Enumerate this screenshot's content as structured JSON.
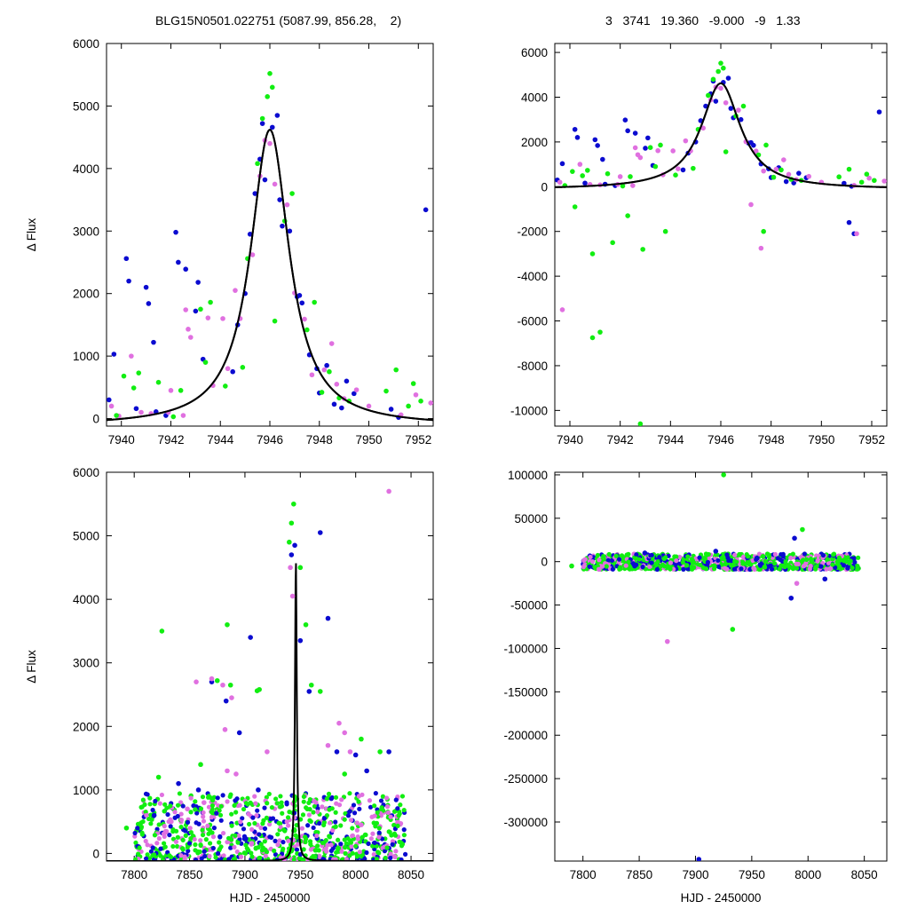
{
  "header": {
    "left": "BLG15N0501.022751 (5087.99, 856.28,    2)",
    "right": "3   3741   19.360   -9.000   -9   1.33"
  },
  "colors": {
    "magenta": "#e070e0",
    "blue": "#0b0bd0",
    "green": "#11ee11",
    "model": "#000000"
  },
  "chart_data": [
    {
      "type": "scatter",
      "panel": "top-left",
      "ylabel": "Δ Flux",
      "xlabel": "",
      "xlim": [
        7939.4,
        7952.6
      ],
      "ylim": [
        -120,
        6000
      ],
      "xticks": [
        7940,
        7942,
        7944,
        7946,
        7948,
        7950,
        7952
      ],
      "yticks": [
        0,
        1000,
        2000,
        3000,
        4000,
        5000,
        6000
      ],
      "model": {
        "type": "line",
        "t0": 7946.0,
        "peak": 4620,
        "width": 0.95,
        "baseline": -120
      },
      "series": [
        {
          "color": "blue",
          "x": [
            7939.5,
            7939.7,
            7940.2,
            7940.3,
            7940.6,
            7941.0,
            7941.1,
            7941.3,
            7941.4,
            7941.8,
            7942.2,
            7942.3,
            7942.6,
            7943.0,
            7943.1,
            7943.3,
            7944.5,
            7944.7,
            7945.0,
            7945.2,
            7945.4,
            7945.6,
            7945.7,
            7945.8,
            7946.1,
            7946.3,
            7946.4,
            7946.5,
            7946.8,
            7947.1,
            7947.2,
            7947.3,
            7947.6,
            7947.9,
            7948.0,
            7948.3,
            7948.6,
            7948.9,
            7949.1,
            7949.4,
            7950.9,
            7951.2,
            7952.3
          ],
          "y": [
            300,
            1030,
            2560,
            2200,
            160,
            2100,
            1840,
            1220,
            110,
            50,
            2980,
            2500,
            2390,
            1720,
            2180,
            950,
            750,
            1500,
            2000,
            2950,
            3600,
            4150,
            4720,
            3820,
            4660,
            4850,
            3500,
            3080,
            3000,
            1950,
            1970,
            1850,
            1020,
            800,
            410,
            850,
            230,
            170,
            600,
            400,
            150,
            20,
            3340
          ]
        },
        {
          "color": "magenta",
          "x": [
            7939.6,
            7939.9,
            7940.4,
            7940.8,
            7941.2,
            7941.9,
            7942.0,
            7942.5,
            7942.6,
            7942.7,
            7942.8,
            7943.5,
            7943.7,
            7944.1,
            7944.3,
            7944.6,
            7944.8,
            7945.3,
            7945.6,
            7945.8,
            7946.0,
            7946.2,
            7946.7,
            7947.0,
            7947.4,
            7947.7,
            7948.2,
            7948.5,
            7948.7,
            7949.0,
            7949.5,
            7950.0,
            7951.3,
            7951.9,
            7952.5
          ],
          "y": [
            200,
            40,
            1000,
            100,
            80,
            100,
            450,
            50,
            1740,
            1430,
            1300,
            1610,
            530,
            1600,
            800,
            2050,
            1600,
            2620,
            3880,
            4450,
            4400,
            3750,
            3420,
            2010,
            1590,
            700,
            780,
            1200,
            550,
            320,
            460,
            200,
            60,
            380,
            250
          ]
        },
        {
          "color": "green",
          "x": [
            7939.8,
            7940.1,
            7940.5,
            7940.7,
            7941.5,
            7942.1,
            7942.4,
            7943.2,
            7943.4,
            7943.6,
            7944.2,
            7944.9,
            7945.1,
            7945.5,
            7945.7,
            7945.9,
            7946.0,
            7946.1,
            7946.2,
            7946.6,
            7946.9,
            7947.5,
            7947.8,
            7948.1,
            7948.4,
            7948.8,
            7949.2,
            7950.7,
            7951.1,
            7951.6,
            7951.8,
            7952.1
          ],
          "y": [
            50,
            680,
            490,
            730,
            580,
            30,
            450,
            1750,
            900,
            1860,
            520,
            820,
            2560,
            4080,
            4800,
            5150,
            5520,
            5300,
            1560,
            3160,
            3600,
            1420,
            1860,
            420,
            750,
            330,
            280,
            440,
            780,
            200,
            560,
            280
          ]
        }
      ]
    },
    {
      "type": "scatter",
      "panel": "top-right",
      "ylabel": "",
      "xlabel": "",
      "xlim": [
        7939.4,
        7952.6
      ],
      "ylim": [
        -10700,
        6400
      ],
      "xticks": [
        7940,
        7942,
        7944,
        7946,
        7948,
        7950,
        7952
      ],
      "yticks": [
        -10000,
        -8000,
        -6000,
        -4000,
        -2000,
        0,
        2000,
        4000,
        6000
      ],
      "model": {
        "type": "line",
        "t0": 7946.0,
        "peak": 4620,
        "width": 0.95,
        "baseline": -120
      },
      "series": [
        {
          "color": "blue",
          "x": [
            7939.5,
            7939.7,
            7940.2,
            7940.3,
            7940.6,
            7941.0,
            7941.1,
            7941.3,
            7941.4,
            7941.8,
            7942.2,
            7942.3,
            7942.6,
            7943.0,
            7943.1,
            7943.3,
            7944.5,
            7944.7,
            7945.0,
            7945.2,
            7945.4,
            7945.6,
            7945.7,
            7945.8,
            7946.1,
            7946.3,
            7946.4,
            7946.5,
            7946.8,
            7947.1,
            7947.2,
            7947.3,
            7947.6,
            7947.9,
            7948.0,
            7948.3,
            7948.6,
            7948.9,
            7949.1,
            7949.4,
            7950.9,
            7951.2,
            7952.3,
            7951.1,
            7951.3
          ],
          "y": [
            300,
            1030,
            2560,
            2200,
            160,
            2100,
            1840,
            1220,
            110,
            50,
            2980,
            2500,
            2390,
            1720,
            2180,
            950,
            750,
            1500,
            2000,
            2950,
            3600,
            4150,
            4720,
            3820,
            4660,
            4850,
            3500,
            3080,
            3000,
            1950,
            1970,
            1850,
            1020,
            800,
            410,
            850,
            230,
            170,
            600,
            400,
            150,
            20,
            3340,
            -1600,
            -2100
          ]
        },
        {
          "color": "magenta",
          "x": [
            7939.6,
            7939.7,
            7940.4,
            7940.8,
            7941.2,
            7941.9,
            7942.0,
            7942.5,
            7942.6,
            7942.7,
            7942.8,
            7943.5,
            7943.7,
            7944.1,
            7944.3,
            7944.6,
            7944.8,
            7945.3,
            7945.6,
            7945.8,
            7946.0,
            7946.2,
            7946.7,
            7947.0,
            7947.4,
            7947.7,
            7948.2,
            7948.5,
            7948.7,
            7949.0,
            7949.5,
            7950.0,
            7951.3,
            7951.9,
            7952.5,
            7947.6,
            7947.2,
            7951.4
          ],
          "y": [
            200,
            -5500,
            1000,
            100,
            80,
            100,
            450,
            50,
            1740,
            1430,
            1300,
            1610,
            530,
            1600,
            800,
            2050,
            1600,
            2620,
            3880,
            4450,
            4400,
            3750,
            3420,
            2010,
            1590,
            700,
            780,
            1200,
            550,
            320,
            460,
            200,
            60,
            380,
            250,
            -2750,
            -800,
            -2100
          ]
        },
        {
          "color": "green",
          "x": [
            7939.8,
            7940.1,
            7940.5,
            7940.7,
            7941.5,
            7942.1,
            7942.4,
            7943.2,
            7943.4,
            7943.6,
            7944.2,
            7944.9,
            7945.1,
            7945.5,
            7945.7,
            7945.9,
            7946.0,
            7946.1,
            7946.2,
            7946.6,
            7946.9,
            7947.5,
            7947.8,
            7948.1,
            7948.4,
            7948.8,
            7949.2,
            7950.7,
            7951.1,
            7951.6,
            7951.8,
            7952.1,
            7940.9,
            7941.2,
            7941.7,
            7942.3,
            7942.9,
            7943.8,
            7940.2,
            7947.7
          ],
          "y": [
            50,
            680,
            490,
            730,
            580,
            30,
            450,
            1750,
            900,
            1860,
            520,
            820,
            2560,
            4080,
            4800,
            5150,
            5520,
            5300,
            1560,
            3160,
            3600,
            1420,
            1860,
            420,
            750,
            330,
            280,
            440,
            780,
            200,
            560,
            280,
            -3000,
            -6500,
            -2500,
            -1300,
            -2800,
            -2000,
            -900,
            -2000
          ]
        },
        {
          "color": "green",
          "x": [
            7940.9,
            7942.8
          ],
          "y": [
            -6750,
            -10600
          ]
        }
      ]
    },
    {
      "type": "scatter",
      "panel": "bottom-left",
      "ylabel": "Δ Flux",
      "xlabel": "HJD - 2450000",
      "xlim": [
        7775,
        8070
      ],
      "ylim": [
        -120,
        6000
      ],
      "xticks": [
        7800,
        7850,
        7900,
        7950,
        8000,
        8050
      ],
      "yticks": [
        0,
        1000,
        2000,
        3000,
        4000,
        5000,
        6000
      ],
      "model": {
        "type": "line",
        "t0": 7946.0,
        "peak": 4620,
        "width": 0.95,
        "baseline": -120
      },
      "outliers": [
        {
          "color": "green",
          "x": [
            7793,
            7822,
            7825,
            7860,
            7875,
            7884,
            7887,
            7911,
            7913,
            7940,
            7942,
            7944,
            7950,
            7955,
            7960,
            7968,
            7990,
            8005,
            8022
          ],
          "y": [
            400,
            1200,
            3500,
            1400,
            2720,
            3600,
            2650,
            2560,
            2580,
            4900,
            5200,
            5500,
            4500,
            3600,
            2650,
            2550,
            1250,
            1800,
            1600
          ]
        },
        {
          "color": "blue",
          "x": [
            7818,
            7840,
            7858,
            7870,
            7883,
            7895,
            7905,
            7912,
            7942,
            7945,
            7950,
            7958,
            7968,
            7975,
            7983,
            8000,
            8010,
            8030
          ],
          "y": [
            600,
            1100,
            1000,
            2700,
            2400,
            1900,
            3400,
            1000,
            4700,
            4850,
            3350,
            2550,
            5050,
            3700,
            1600,
            1550,
            1300,
            1600
          ]
        },
        {
          "color": "magenta",
          "x": [
            7848,
            7856,
            7863,
            7870,
            7880,
            7882,
            7884,
            7888,
            7892,
            7920,
            7941,
            7943,
            7975,
            7985,
            7990,
            7995,
            8005,
            8030
          ],
          "y": [
            700,
            2700,
            800,
            2750,
            2650,
            1950,
            1300,
            2450,
            1250,
            1600,
            4500,
            4050,
            1700,
            2050,
            1900,
            1600,
            450,
            5700
          ]
        }
      ],
      "cloud": {
        "x_range": [
          7800,
          8045
        ],
        "y_range": [
          -100,
          950
        ]
      }
    },
    {
      "type": "scatter",
      "panel": "bottom-right",
      "ylabel": "",
      "xlabel": "HJD - 2450000",
      "xlim": [
        7775,
        8070
      ],
      "ylim": [
        -345000,
        103000
      ],
      "xticks": [
        7800,
        7850,
        7900,
        7950,
        8000,
        8050
      ],
      "yticks": [
        -300000,
        -250000,
        -200000,
        -150000,
        -100000,
        -50000,
        0,
        50000,
        100000
      ],
      "outliers": [
        {
          "color": "green",
          "x": [
            7925,
            7933,
            7995,
            7790,
            7960
          ],
          "y": [
            100000,
            -78000,
            37000,
            -5000,
            6000
          ]
        },
        {
          "color": "blue",
          "x": [
            7903,
            7985,
            7988,
            8015,
            7855,
            7918
          ],
          "y": [
            -343000,
            -42000,
            27000,
            -20000,
            10000,
            12000
          ]
        },
        {
          "color": "magenta",
          "x": [
            7875,
            7990
          ],
          "y": [
            -92000,
            -25000
          ]
        }
      ],
      "cloud": {
        "x_range": [
          7800,
          8045
        ],
        "y_range": [
          -9000,
          9000
        ]
      }
    }
  ]
}
